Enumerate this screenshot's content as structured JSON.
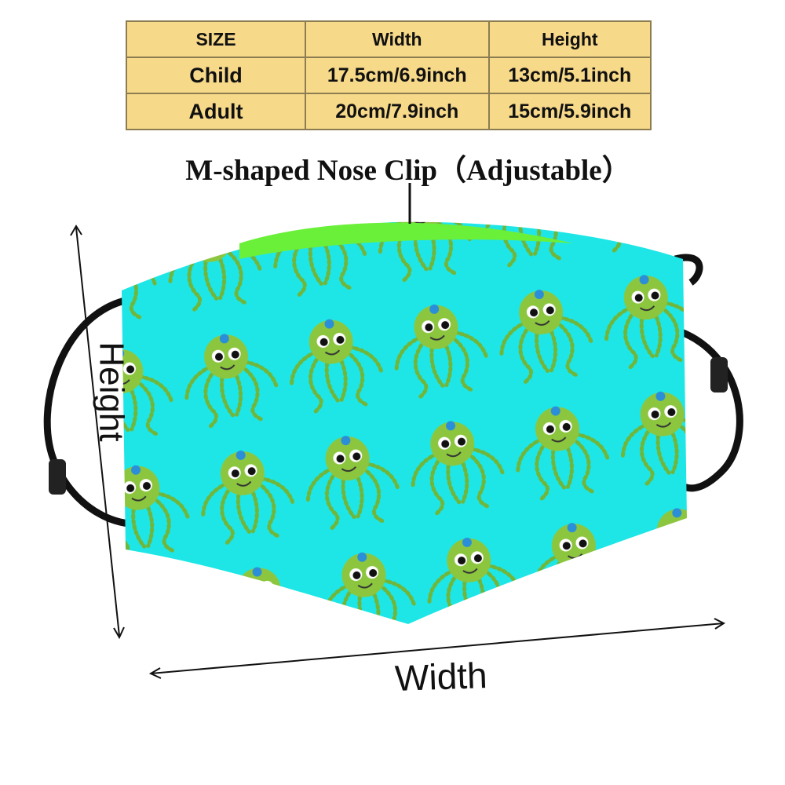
{
  "table": {
    "header": [
      "SIZE",
      "Width",
      "Height"
    ],
    "rows": [
      [
        "Child",
        "17.5cm/6.9inch",
        "13cm/5.1inch"
      ],
      [
        "Adult",
        "20cm/7.9inch",
        "15cm/5.9inch"
      ]
    ]
  },
  "annotations": {
    "nose_clip": "M-shaped Nose Clip（Adjustable）",
    "height": "Height",
    "width": "Width"
  }
}
